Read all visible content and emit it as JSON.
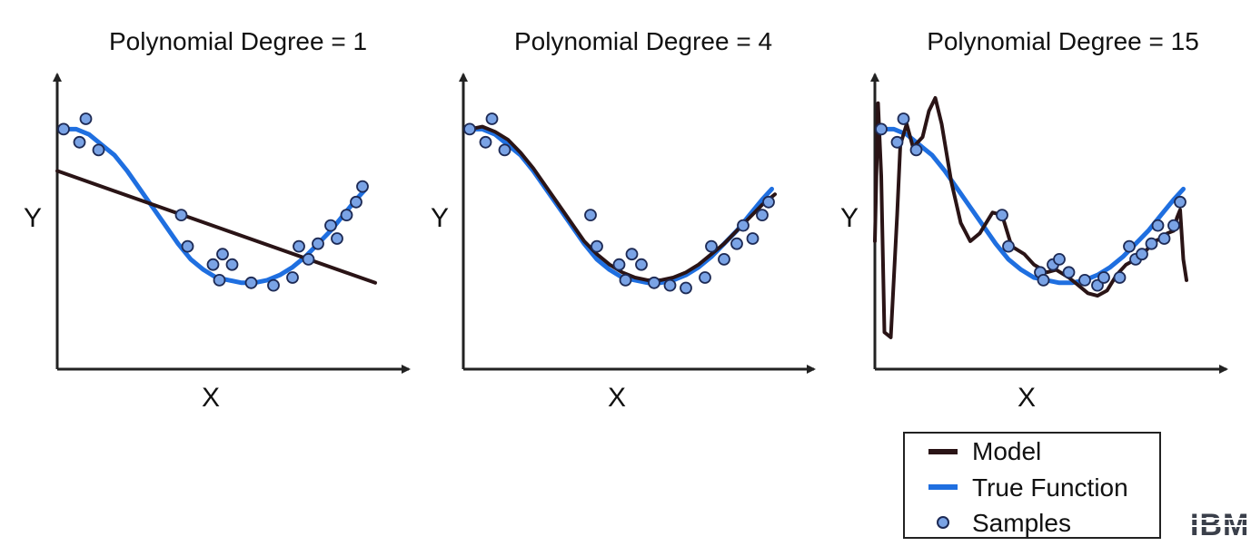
{
  "colors": {
    "model": "#2a1416",
    "true_function": "#1f6fe0",
    "sample_fill": "#7aa3e5",
    "sample_stroke": "#1d2a55",
    "axis": "#222222"
  },
  "legend": {
    "model": "Model",
    "true_function": "True Function",
    "samples": "Samples"
  },
  "logo": {
    "text": "IBM"
  },
  "chart_data": [
    {
      "type": "line",
      "title": "Polynomial Degree = 1",
      "xlabel": "X",
      "ylabel": "Y",
      "xlim": [
        0,
        1
      ],
      "ylim": [
        0,
        1
      ],
      "samples": {
        "x": [
          0.02,
          0.07,
          0.09,
          0.13,
          0.39,
          0.41,
          0.49,
          0.51,
          0.52,
          0.55,
          0.61,
          0.68,
          0.74,
          0.76,
          0.79,
          0.82,
          0.86,
          0.88,
          0.91,
          0.94,
          0.96
        ],
        "y": [
          0.88,
          0.83,
          0.92,
          0.8,
          0.55,
          0.43,
          0.36,
          0.3,
          0.4,
          0.36,
          0.29,
          0.28,
          0.31,
          0.43,
          0.38,
          0.44,
          0.51,
          0.46,
          0.55,
          0.6,
          0.66
        ]
      },
      "true_function": {
        "x": [
          0.02,
          0.06,
          0.1,
          0.14,
          0.18,
          0.22,
          0.26,
          0.3,
          0.34,
          0.38,
          0.42,
          0.46,
          0.5,
          0.54,
          0.58,
          0.62,
          0.66,
          0.7,
          0.74,
          0.78,
          0.82,
          0.86,
          0.9,
          0.94,
          0.97
        ],
        "y": [
          0.88,
          0.88,
          0.86,
          0.82,
          0.78,
          0.72,
          0.65,
          0.58,
          0.51,
          0.44,
          0.38,
          0.34,
          0.31,
          0.3,
          0.29,
          0.29,
          0.3,
          0.32,
          0.35,
          0.39,
          0.44,
          0.49,
          0.55,
          0.61,
          0.65
        ]
      },
      "model": {
        "x": [
          0.0,
          1.0
        ],
        "y": [
          0.72,
          0.29
        ]
      }
    },
    {
      "type": "line",
      "title": "Polynomial Degree = 4",
      "xlabel": "X",
      "ylabel": "Y",
      "xlim": [
        0,
        1
      ],
      "ylim": [
        0,
        1
      ],
      "samples": {
        "x": [
          0.02,
          0.07,
          0.09,
          0.13,
          0.4,
          0.42,
          0.49,
          0.51,
          0.53,
          0.56,
          0.6,
          0.65,
          0.7,
          0.76,
          0.78,
          0.82,
          0.86,
          0.88,
          0.91,
          0.94,
          0.96
        ],
        "y": [
          0.88,
          0.83,
          0.92,
          0.8,
          0.55,
          0.43,
          0.36,
          0.3,
          0.4,
          0.36,
          0.29,
          0.28,
          0.27,
          0.31,
          0.43,
          0.38,
          0.44,
          0.51,
          0.46,
          0.55,
          0.6
        ]
      },
      "true_function": {
        "x": [
          0.02,
          0.06,
          0.1,
          0.14,
          0.18,
          0.22,
          0.26,
          0.3,
          0.34,
          0.38,
          0.42,
          0.46,
          0.5,
          0.54,
          0.58,
          0.62,
          0.66,
          0.7,
          0.74,
          0.78,
          0.82,
          0.86,
          0.9,
          0.94,
          0.97
        ],
        "y": [
          0.88,
          0.88,
          0.86,
          0.82,
          0.78,
          0.72,
          0.65,
          0.58,
          0.51,
          0.44,
          0.38,
          0.34,
          0.31,
          0.3,
          0.29,
          0.29,
          0.3,
          0.32,
          0.35,
          0.39,
          0.44,
          0.49,
          0.55,
          0.61,
          0.65
        ]
      },
      "model": {
        "x": [
          0.02,
          0.06,
          0.1,
          0.14,
          0.18,
          0.22,
          0.26,
          0.3,
          0.34,
          0.38,
          0.42,
          0.46,
          0.5,
          0.54,
          0.58,
          0.62,
          0.66,
          0.7,
          0.74,
          0.78,
          0.82,
          0.86,
          0.9,
          0.94,
          0.98
        ],
        "y": [
          0.88,
          0.89,
          0.87,
          0.84,
          0.79,
          0.73,
          0.66,
          0.59,
          0.52,
          0.45,
          0.4,
          0.36,
          0.33,
          0.31,
          0.3,
          0.3,
          0.31,
          0.33,
          0.36,
          0.4,
          0.44,
          0.49,
          0.54,
          0.59,
          0.63
        ]
      }
    },
    {
      "type": "line",
      "title": "Polynomial Degree = 15",
      "xlabel": "X",
      "ylabel": "Y",
      "xlim": [
        0,
        1
      ],
      "ylim": [
        0,
        1
      ],
      "samples": {
        "x": [
          0.02,
          0.07,
          0.09,
          0.13,
          0.4,
          0.42,
          0.52,
          0.53,
          0.56,
          0.58,
          0.61,
          0.66,
          0.7,
          0.72,
          0.77,
          0.8,
          0.82,
          0.84,
          0.87,
          0.89,
          0.91,
          0.94,
          0.96
        ],
        "y": [
          0.88,
          0.83,
          0.92,
          0.8,
          0.55,
          0.43,
          0.33,
          0.3,
          0.36,
          0.38,
          0.33,
          0.3,
          0.28,
          0.31,
          0.31,
          0.43,
          0.38,
          0.4,
          0.44,
          0.51,
          0.46,
          0.51,
          0.6
        ]
      },
      "true_function": {
        "x": [
          0.02,
          0.06,
          0.1,
          0.14,
          0.18,
          0.22,
          0.26,
          0.3,
          0.34,
          0.38,
          0.42,
          0.46,
          0.5,
          0.54,
          0.58,
          0.62,
          0.66,
          0.7,
          0.74,
          0.78,
          0.82,
          0.86,
          0.9,
          0.94,
          0.97
        ],
        "y": [
          0.88,
          0.88,
          0.86,
          0.82,
          0.78,
          0.72,
          0.65,
          0.58,
          0.51,
          0.44,
          0.38,
          0.34,
          0.31,
          0.3,
          0.29,
          0.29,
          0.3,
          0.32,
          0.35,
          0.39,
          0.44,
          0.49,
          0.55,
          0.61,
          0.65
        ]
      },
      "model": {
        "x": [
          0.0,
          0.01,
          0.02,
          0.03,
          0.05,
          0.07,
          0.08,
          0.1,
          0.12,
          0.15,
          0.17,
          0.19,
          0.21,
          0.24,
          0.27,
          0.3,
          0.33,
          0.37,
          0.4,
          0.43,
          0.47,
          0.5,
          0.54,
          0.57,
          0.61,
          0.64,
          0.67,
          0.7,
          0.73,
          0.76,
          0.79,
          0.82,
          0.85,
          0.88,
          0.9,
          0.92,
          0.94,
          0.95,
          0.96,
          0.97,
          0.98
        ],
        "y": [
          0.45,
          0.98,
          0.7,
          0.1,
          0.08,
          0.55,
          0.82,
          0.9,
          0.81,
          0.85,
          0.95,
          1.0,
          0.9,
          0.68,
          0.52,
          0.45,
          0.48,
          0.56,
          0.55,
          0.43,
          0.4,
          0.36,
          0.33,
          0.34,
          0.31,
          0.28,
          0.25,
          0.24,
          0.26,
          0.32,
          0.36,
          0.38,
          0.41,
          0.45,
          0.46,
          0.48,
          0.49,
          0.54,
          0.57,
          0.38,
          0.3
        ]
      }
    }
  ]
}
